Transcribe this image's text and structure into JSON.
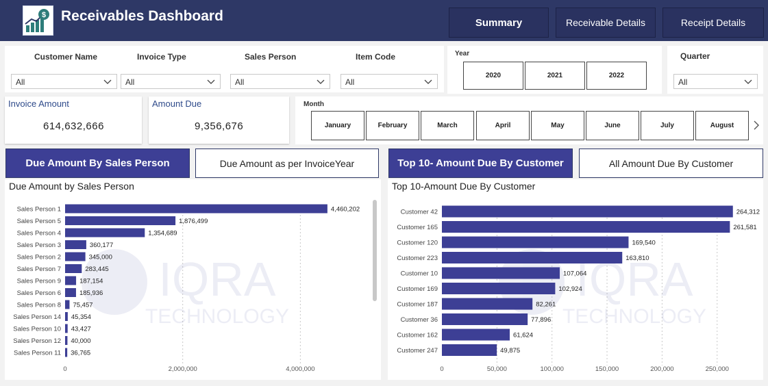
{
  "header": {
    "title": "Receivables Dashboard",
    "nav": [
      {
        "label": "Summary",
        "active": true
      },
      {
        "label": "Receivable Details",
        "active": false
      },
      {
        "label": "Receipt Details",
        "active": false
      }
    ]
  },
  "filters": {
    "customer_name": {
      "label": "Customer Name",
      "value": "All"
    },
    "invoice_type": {
      "label": "Invoice Type",
      "value": "All"
    },
    "sales_person": {
      "label": "Sales Person",
      "value": "All"
    },
    "item_code": {
      "label": "Item Code",
      "value": "All"
    },
    "quarter": {
      "label": "Quarter",
      "value": "All"
    },
    "year": {
      "label": "Year",
      "options": [
        "2020",
        "2021",
        "2022"
      ]
    },
    "month": {
      "label": "Month",
      "options": [
        "January",
        "February",
        "March",
        "April",
        "May",
        "June",
        "July",
        "August"
      ]
    }
  },
  "kpis": {
    "invoice_amount": {
      "label": "Invoice Amount",
      "value": "614,632,666"
    },
    "amount_due": {
      "label": "Amount Due",
      "value": "9,356,676"
    }
  },
  "tabs": {
    "left": [
      {
        "label": "Due Amount By Sales Person",
        "active": true
      },
      {
        "label": "Due Amount as per InvoiceYear",
        "active": false
      }
    ],
    "right": [
      {
        "label": "Top 10- Amount Due By Customer",
        "active": true
      },
      {
        "label": "All Amount Due By Customer",
        "active": false
      }
    ]
  },
  "watermark": {
    "line1": "IQRA",
    "line2": "TECHNOLOGY"
  },
  "colors": {
    "header": "#2e3866",
    "bar": "#3d3f95",
    "accent_text": "#2e4a8a"
  },
  "chart_data": [
    {
      "type": "bar",
      "orientation": "horizontal",
      "title": "Due Amount by Sales Person",
      "categories": [
        "Sales Person 1",
        "Sales Person 5",
        "Sales Person 4",
        "Sales Person 3",
        "Sales Person 2",
        "Sales Person 7",
        "Sales Person 9",
        "Sales Person 6",
        "Sales Person 8",
        "Sales Person 14",
        "Sales Person 10",
        "Sales Person 12",
        "Sales Person 11"
      ],
      "values": [
        4460202,
        1876499,
        1354689,
        360177,
        345000,
        283445,
        187154,
        185936,
        75457,
        45354,
        43427,
        40000,
        36765
      ],
      "value_labels": [
        "4,460,202",
        "1,876,499",
        "1,354,689",
        "360,177",
        "345,000",
        "283,445",
        "187,154",
        "185,936",
        "75,457",
        "45,354",
        "43,427",
        "40,000",
        "36,765"
      ],
      "xticks": [
        0,
        2000000,
        4000000
      ],
      "xtick_labels": [
        "0",
        "2,000,000",
        "4,000,000"
      ],
      "xlim": [
        0,
        5300000
      ],
      "grid": true
    },
    {
      "type": "bar",
      "orientation": "horizontal",
      "title": "Top 10-Amount Due By Customer",
      "categories": [
        "Customer 42",
        "Customer 165",
        "Customer 120",
        "Customer 223",
        "Customer 10",
        "Customer 169",
        "Customer 187",
        "Customer 36",
        "Customer 162",
        "Customer 247"
      ],
      "values": [
        264312,
        261581,
        169540,
        163810,
        107064,
        102924,
        82261,
        77896,
        61624,
        49875
      ],
      "value_labels": [
        "264,312",
        "261,581",
        "169,540",
        "163,810",
        "107,064",
        "102,924",
        "82,261",
        "77,896",
        "61,624",
        "49,875"
      ],
      "xticks": [
        0,
        50000,
        100000,
        150000,
        200000,
        250000
      ],
      "xtick_labels": [
        "0",
        "50,000",
        "100,000",
        "150,000",
        "200,000",
        "250,000"
      ],
      "xlim": [
        0,
        285000
      ],
      "grid": true
    }
  ]
}
